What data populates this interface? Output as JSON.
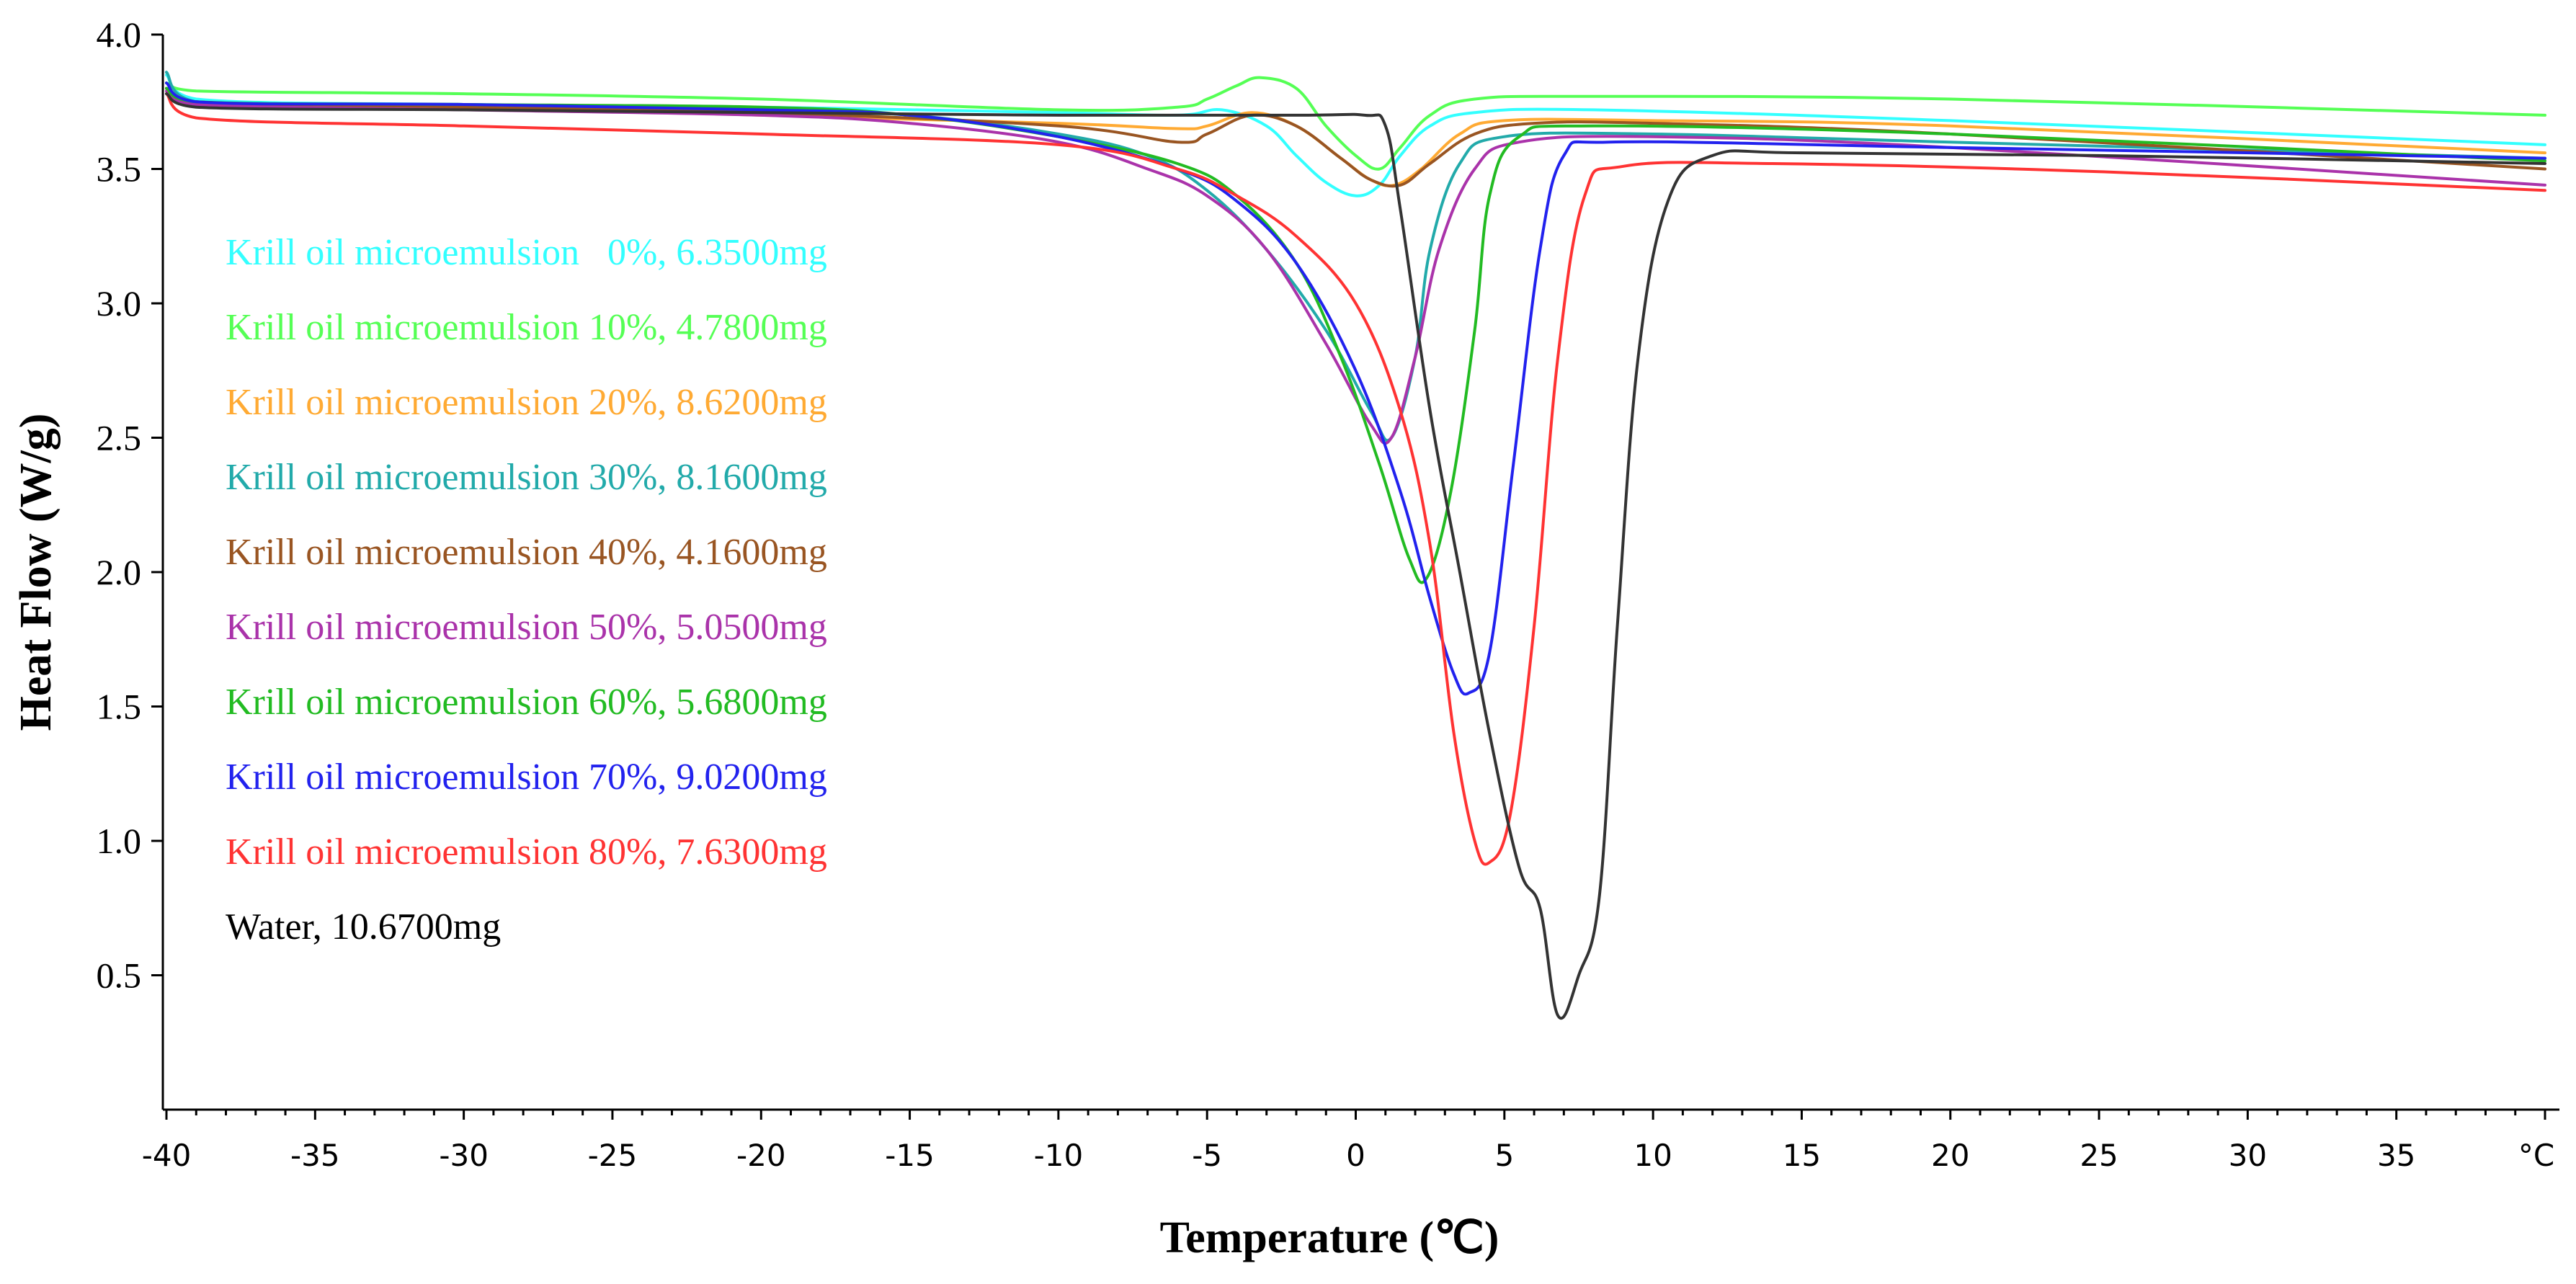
{
  "chart_data": {
    "type": "line",
    "title": "",
    "xlabel": "Temperature (℃)",
    "ylabel": "Heat Flow (W/g)",
    "xlim": [
      -40,
      40
    ],
    "ylim": [
      0,
      4.0
    ],
    "x_ticks": [
      -40,
      -35,
      -30,
      -25,
      -20,
      -15,
      -10,
      -5,
      0,
      5,
      10,
      15,
      20,
      25,
      30,
      35
    ],
    "x_tick_labels": [
      "-40",
      "-35",
      "-30",
      "-25",
      "-20",
      "-15",
      "-10",
      "-5",
      "0",
      "5",
      "10",
      "15",
      "20",
      "25",
      "30",
      "35"
    ],
    "x_unit_label": "°C",
    "y_ticks": [
      0.5,
      1.0,
      1.5,
      2.0,
      2.5,
      3.0,
      3.5,
      4.0
    ],
    "y_tick_labels": [
      "0.5",
      "1.0",
      "1.5",
      "2.0",
      "2.5",
      "3.0",
      "3.5",
      "4.0"
    ],
    "legend_position": "upper-left",
    "grid": false,
    "series": [
      {
        "name": "Krill oil microemulsion   0%, 6.3500mg",
        "color": "#33ffff",
        "points": [
          [
            -40,
            3.85
          ],
          [
            -39,
            3.76
          ],
          [
            -30,
            3.74
          ],
          [
            -20,
            3.73
          ],
          [
            -10,
            3.71
          ],
          [
            -6,
            3.7
          ],
          [
            -4.5,
            3.72
          ],
          [
            -3,
            3.66
          ],
          [
            -2,
            3.55
          ],
          [
            -1,
            3.45
          ],
          [
            0,
            3.4
          ],
          [
            0.8,
            3.44
          ],
          [
            1.5,
            3.55
          ],
          [
            2.5,
            3.66
          ],
          [
            4,
            3.71
          ],
          [
            8,
            3.72
          ],
          [
            20,
            3.68
          ],
          [
            40,
            3.59
          ]
        ]
      },
      {
        "name": "Krill oil microemulsion 10%, 4.7800mg",
        "color": "#55ff55",
        "points": [
          [
            -40,
            3.82
          ],
          [
            -39,
            3.79
          ],
          [
            -30,
            3.78
          ],
          [
            -20,
            3.76
          ],
          [
            -10,
            3.72
          ],
          [
            -6,
            3.73
          ],
          [
            -5,
            3.76
          ],
          [
            -4,
            3.81
          ],
          [
            -3.2,
            3.84
          ],
          [
            -2,
            3.8
          ],
          [
            -1,
            3.66
          ],
          [
            0,
            3.55
          ],
          [
            0.8,
            3.5
          ],
          [
            1.5,
            3.58
          ],
          [
            2.5,
            3.7
          ],
          [
            4,
            3.76
          ],
          [
            8,
            3.77
          ],
          [
            20,
            3.76
          ],
          [
            40,
            3.7
          ]
        ]
      },
      {
        "name": "Krill oil microemulsion 20%, 8.6200mg",
        "color": "#ffaa33",
        "points": [
          [
            -40,
            3.8
          ],
          [
            -39,
            3.75
          ],
          [
            -30,
            3.73
          ],
          [
            -20,
            3.7
          ],
          [
            -10,
            3.67
          ],
          [
            -6,
            3.65
          ],
          [
            -5,
            3.66
          ],
          [
            -3.5,
            3.71
          ],
          [
            -2,
            3.66
          ],
          [
            -0.5,
            3.54
          ],
          [
            0.5,
            3.46
          ],
          [
            1.3,
            3.44
          ],
          [
            2.2,
            3.5
          ],
          [
            3.5,
            3.63
          ],
          [
            5,
            3.68
          ],
          [
            10,
            3.68
          ],
          [
            20,
            3.66
          ],
          [
            40,
            3.56
          ]
        ]
      },
      {
        "name": "Krill oil microemulsion 30%, 8.1600mg",
        "color": "#22aaaa",
        "points": [
          [
            -40,
            3.86
          ],
          [
            -39,
            3.75
          ],
          [
            -30,
            3.74
          ],
          [
            -20,
            3.72
          ],
          [
            -15,
            3.7
          ],
          [
            -10,
            3.63
          ],
          [
            -7,
            3.55
          ],
          [
            -5,
            3.42
          ],
          [
            -3,
            3.2
          ],
          [
            -1,
            2.9
          ],
          [
            0.5,
            2.6
          ],
          [
            1.2,
            2.5
          ],
          [
            2,
            2.8
          ],
          [
            2.5,
            3.2
          ],
          [
            3.5,
            3.52
          ],
          [
            5,
            3.62
          ],
          [
            10,
            3.63
          ],
          [
            20,
            3.6
          ],
          [
            40,
            3.54
          ]
        ]
      },
      {
        "name": "Krill oil microemulsion 40%, 4.1600mg",
        "color": "#995522",
        "points": [
          [
            -40,
            3.8
          ],
          [
            -39,
            3.75
          ],
          [
            -30,
            3.73
          ],
          [
            -20,
            3.71
          ],
          [
            -10,
            3.66
          ],
          [
            -6,
            3.6
          ],
          [
            -5,
            3.63
          ],
          [
            -3.5,
            3.7
          ],
          [
            -2,
            3.66
          ],
          [
            -0.5,
            3.54
          ],
          [
            0.5,
            3.46
          ],
          [
            1.5,
            3.44
          ],
          [
            2.5,
            3.52
          ],
          [
            4,
            3.63
          ],
          [
            6,
            3.67
          ],
          [
            10,
            3.67
          ],
          [
            20,
            3.63
          ],
          [
            40,
            3.5
          ]
        ]
      },
      {
        "name": "Krill oil microemulsion 50%, 5.0500mg",
        "color": "#aa33aa",
        "points": [
          [
            -40,
            3.79
          ],
          [
            -39,
            3.74
          ],
          [
            -30,
            3.72
          ],
          [
            -20,
            3.7
          ],
          [
            -15,
            3.67
          ],
          [
            -10,
            3.6
          ],
          [
            -7,
            3.5
          ],
          [
            -5,
            3.4
          ],
          [
            -3,
            3.2
          ],
          [
            -1,
            2.85
          ],
          [
            0.5,
            2.55
          ],
          [
            1.2,
            2.5
          ],
          [
            2,
            2.8
          ],
          [
            2.8,
            3.2
          ],
          [
            4,
            3.5
          ],
          [
            5.5,
            3.6
          ],
          [
            10,
            3.62
          ],
          [
            20,
            3.58
          ],
          [
            40,
            3.44
          ]
        ]
      },
      {
        "name": "Krill oil microemulsion 60%, 5.6800mg",
        "color": "#22bb22",
        "points": [
          [
            -40,
            3.8
          ],
          [
            -39,
            3.75
          ],
          [
            -30,
            3.74
          ],
          [
            -20,
            3.73
          ],
          [
            -15,
            3.7
          ],
          [
            -10,
            3.62
          ],
          [
            -6,
            3.52
          ],
          [
            -4,
            3.4
          ],
          [
            -2,
            3.15
          ],
          [
            -0.5,
            2.8
          ],
          [
            0.8,
            2.4
          ],
          [
            1.8,
            2.05
          ],
          [
            2.4,
            1.98
          ],
          [
            3.2,
            2.3
          ],
          [
            4,
            2.9
          ],
          [
            4.5,
            3.4
          ],
          [
            5.5,
            3.62
          ],
          [
            8,
            3.66
          ],
          [
            20,
            3.63
          ],
          [
            40,
            3.53
          ]
        ]
      },
      {
        "name": "Krill oil microemulsion 70%, 9.0200mg",
        "color": "#2222ee",
        "points": [
          [
            -40,
            3.82
          ],
          [
            -39,
            3.75
          ],
          [
            -30,
            3.74
          ],
          [
            -20,
            3.72
          ],
          [
            -15,
            3.7
          ],
          [
            -10,
            3.62
          ],
          [
            -6,
            3.5
          ],
          [
            -4,
            3.38
          ],
          [
            -2,
            3.15
          ],
          [
            0,
            2.75
          ],
          [
            1.5,
            2.3
          ],
          [
            2.5,
            1.9
          ],
          [
            3.3,
            1.62
          ],
          [
            3.8,
            1.55
          ],
          [
            4.5,
            1.7
          ],
          [
            5.3,
            2.4
          ],
          [
            6.2,
            3.2
          ],
          [
            7,
            3.55
          ],
          [
            8.5,
            3.6
          ],
          [
            20,
            3.58
          ],
          [
            40,
            3.54
          ]
        ]
      },
      {
        "name": "Krill oil microemulsion 80%, 7.6300mg",
        "color": "#ff3333",
        "points": [
          [
            -40,
            3.78
          ],
          [
            -39,
            3.69
          ],
          [
            -30,
            3.66
          ],
          [
            -20,
            3.63
          ],
          [
            -10,
            3.59
          ],
          [
            -6,
            3.5
          ],
          [
            -4,
            3.4
          ],
          [
            -2,
            3.25
          ],
          [
            0,
            3.0
          ],
          [
            1.5,
            2.6
          ],
          [
            2.5,
            2.1
          ],
          [
            3.3,
            1.4
          ],
          [
            4,
            1.0
          ],
          [
            4.5,
            0.92
          ],
          [
            5.2,
            1.1
          ],
          [
            6,
            1.8
          ],
          [
            6.8,
            2.8
          ],
          [
            7.7,
            3.4
          ],
          [
            9,
            3.51
          ],
          [
            14,
            3.52
          ],
          [
            25,
            3.49
          ],
          [
            40,
            3.42
          ]
        ]
      },
      {
        "name": "Water, 10.6700mg",
        "color": "#333333",
        "points": [
          [
            -40,
            3.78
          ],
          [
            -39,
            3.73
          ],
          [
            -30,
            3.72
          ],
          [
            -20,
            3.71
          ],
          [
            -10,
            3.7
          ],
          [
            -2,
            3.7
          ],
          [
            0.3,
            3.7
          ],
          [
            1,
            3.66
          ],
          [
            1.5,
            3.35
          ],
          [
            2.5,
            2.6
          ],
          [
            3.5,
            2.0
          ],
          [
            4.5,
            1.4
          ],
          [
            5.5,
            0.9
          ],
          [
            6.2,
            0.75
          ],
          [
            6.8,
            0.35
          ],
          [
            7.5,
            0.5
          ],
          [
            8.2,
            0.8
          ],
          [
            8.8,
            1.8
          ],
          [
            9.5,
            2.8
          ],
          [
            10.5,
            3.38
          ],
          [
            12,
            3.55
          ],
          [
            15,
            3.56
          ],
          [
            25,
            3.55
          ],
          [
            40,
            3.52
          ]
        ]
      }
    ]
  }
}
